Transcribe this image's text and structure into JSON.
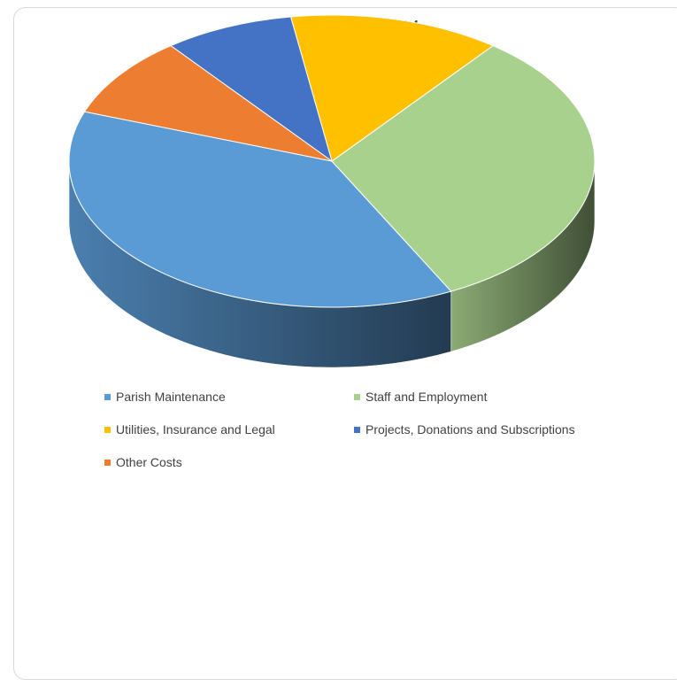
{
  "chart_data": {
    "type": "pie",
    "title": "BUDGET 2023/2024",
    "three_d": true,
    "categories": [
      "Parish Maintenance",
      "Staff and Employment",
      "Utilities, Insurance and Legal",
      "Projects, Donations and Subscriptions",
      "Other Costs"
    ],
    "values": [
      38,
      32,
      13,
      8,
      9
    ],
    "colors": [
      "#5b9bd5",
      "#a9d18e",
      "#ffc000",
      "#4472c4",
      "#ed7d31"
    ],
    "legend_position": "bottom"
  }
}
